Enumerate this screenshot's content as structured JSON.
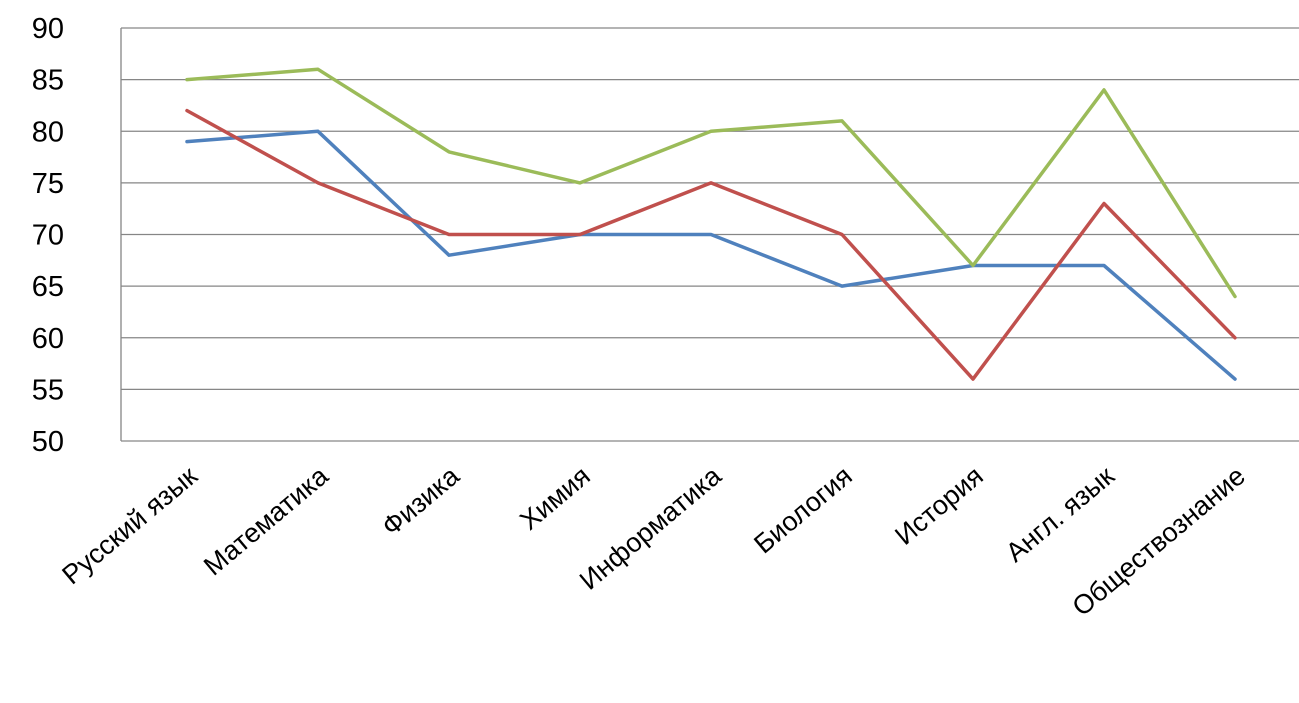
{
  "chart_data": {
    "type": "line",
    "title": "",
    "xlabel": "",
    "ylabel": "",
    "ylim": [
      50,
      90
    ],
    "y_ticks": [
      "50",
      "55",
      "60",
      "65",
      "70",
      "75",
      "80",
      "85",
      "90"
    ],
    "grid": true,
    "legend": "none",
    "categories": [
      "Русский язык",
      "Математика",
      "Физика",
      "Химия",
      "Информатика",
      "Биология",
      "История",
      "Англ. язык",
      "Обществознание"
    ],
    "series": [
      {
        "color": "#4F81BD",
        "values": [
          79,
          80,
          68,
          70,
          70,
          65,
          67,
          67,
          56
        ]
      },
      {
        "color": "#C0504D",
        "values": [
          82,
          75,
          70,
          70,
          75,
          70,
          56,
          73,
          60
        ]
      },
      {
        "color": "#9BBB59",
        "values": [
          85,
          86,
          78,
          75,
          80,
          81,
          67,
          84,
          64
        ]
      }
    ]
  }
}
